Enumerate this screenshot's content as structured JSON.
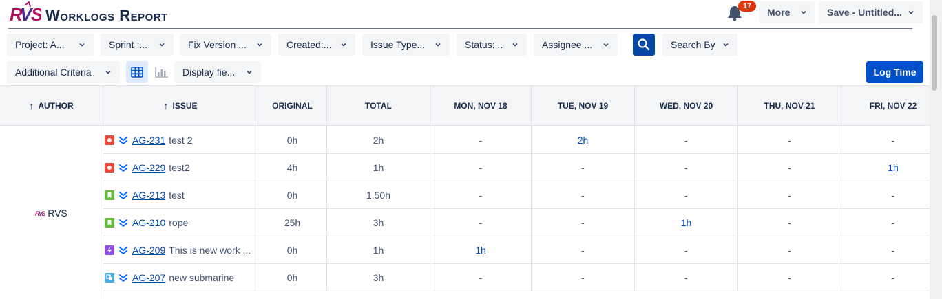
{
  "app": {
    "logo_text": "RVS",
    "title": "Worklogs Report"
  },
  "notifications": {
    "count": "17"
  },
  "toolbar": {
    "more_label": "More",
    "save_label": "Save - Untitled..."
  },
  "filters": {
    "project": "Project: A...",
    "sprint": "Sprint :...",
    "fix_version": "Fix Version ...",
    "created": "Created:...",
    "issue_type": "Issue Type...",
    "status": "Status:...",
    "assignee": "Assignee ...",
    "search_by": "Search By",
    "additional_criteria": "Additional Criteria",
    "display_fields": "Display fie...",
    "log_time": "Log Time"
  },
  "table": {
    "headers": {
      "author": "AUTHOR",
      "issue": "ISSUE",
      "original": "ORIGINAL",
      "total": "TOTAL",
      "days": [
        "MON, NOV 18",
        "TUE, NOV 19",
        "WED, NOV 20",
        "THU, NOV 21",
        "FRI, NOV 22"
      ]
    },
    "sort_arrow": "↑",
    "author": "RVS",
    "rows": [
      {
        "type": "bug",
        "key": "AG-231",
        "summary": "test 2",
        "done": false,
        "original": "0h",
        "total": "2h",
        "days": [
          "-",
          "2h",
          "-",
          "-",
          "-"
        ]
      },
      {
        "type": "bug",
        "key": "AG-229",
        "summary": "test2",
        "done": false,
        "original": "4h",
        "total": "1h",
        "days": [
          "-",
          "-",
          "-",
          "-",
          "1h"
        ]
      },
      {
        "type": "story",
        "key": "AG-213",
        "summary": "test",
        "done": false,
        "original": "0h",
        "total": "1.50h",
        "days": [
          "-",
          "-",
          "-",
          "-",
          "-"
        ]
      },
      {
        "type": "story",
        "key": "AG-210",
        "summary": "rope",
        "done": true,
        "original": "25h",
        "total": "3h",
        "days": [
          "-",
          "-",
          "1h",
          "-",
          "-"
        ]
      },
      {
        "type": "epic",
        "key": "AG-209",
        "summary": "This is new work ...",
        "done": false,
        "original": "0h",
        "total": "1h",
        "days": [
          "1h",
          "-",
          "-",
          "-",
          "-"
        ]
      },
      {
        "type": "subtask",
        "key": "AG-207",
        "summary": "new submarine",
        "done": false,
        "original": "0h",
        "total": "3h",
        "days": [
          "-",
          "-",
          "-",
          "-",
          "-"
        ]
      }
    ]
  },
  "colors": {
    "bug": "#e5493a",
    "story": "#63ba3c",
    "epic": "#904ee2",
    "subtask": "#4bade8",
    "priority": "#0065ff",
    "link": "#0052cc"
  },
  "icons": {
    "bell": "bell-icon",
    "search": "search-icon",
    "grid": "grid-view-icon",
    "chart": "chart-view-icon",
    "chevron": "chevron-down-icon",
    "priority": "priority-lowest-icon"
  }
}
